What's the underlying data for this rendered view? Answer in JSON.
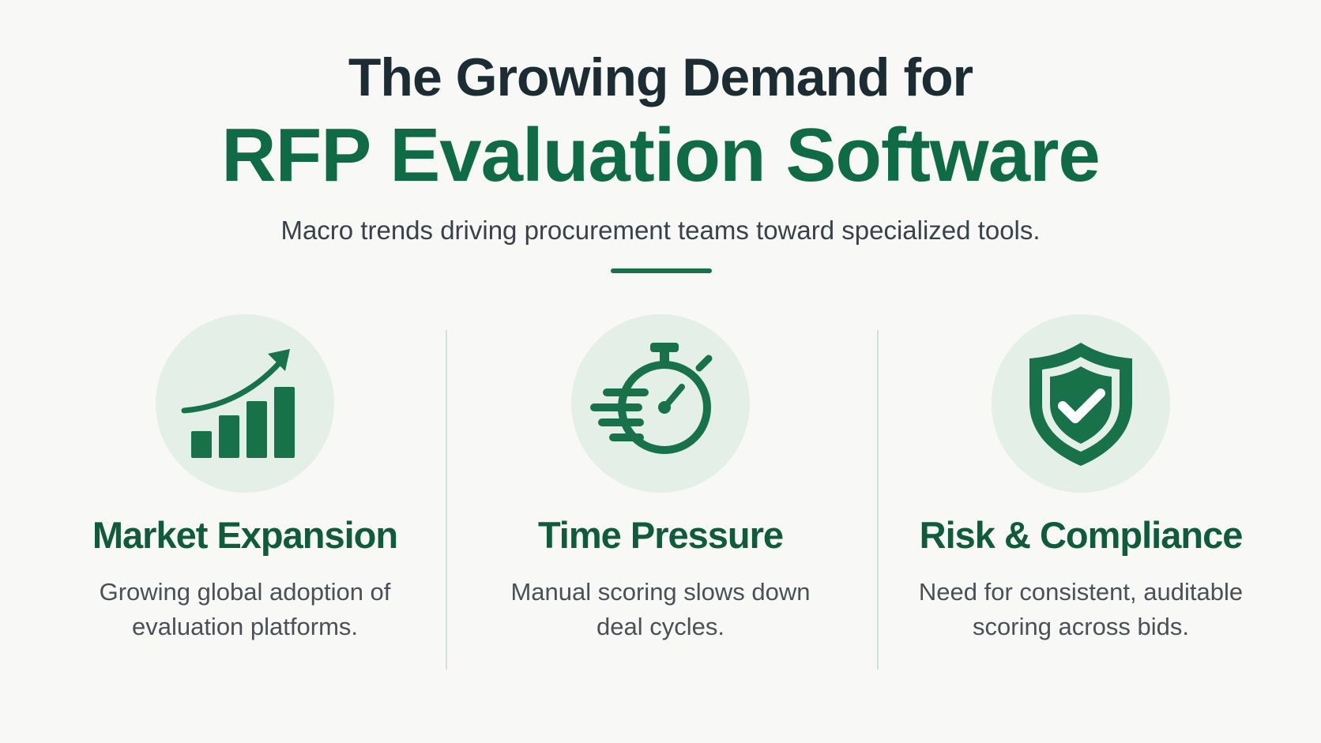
{
  "header": {
    "title_line1": "The Growing Demand for",
    "title_line2": "RFP Evaluation Software",
    "subtitle": "Macro trends driving procurement teams toward specialized tools."
  },
  "colors": {
    "accent_green": "#0e6b45",
    "title_dark": "#1c2c33",
    "icon_circle_bg": "#e4efe8",
    "divider": "#cfe3d8"
  },
  "cards": [
    {
      "icon": "growth-chart-icon",
      "title": "Market Expansion",
      "description": "Growing global adoption of evaluation platforms."
    },
    {
      "icon": "stopwatch-icon",
      "title": "Time Pressure",
      "description": "Manual scoring slows down deal cycles."
    },
    {
      "icon": "shield-check-icon",
      "title": "Risk & Compliance",
      "description": "Need for consistent, auditable scoring across bids."
    }
  ]
}
